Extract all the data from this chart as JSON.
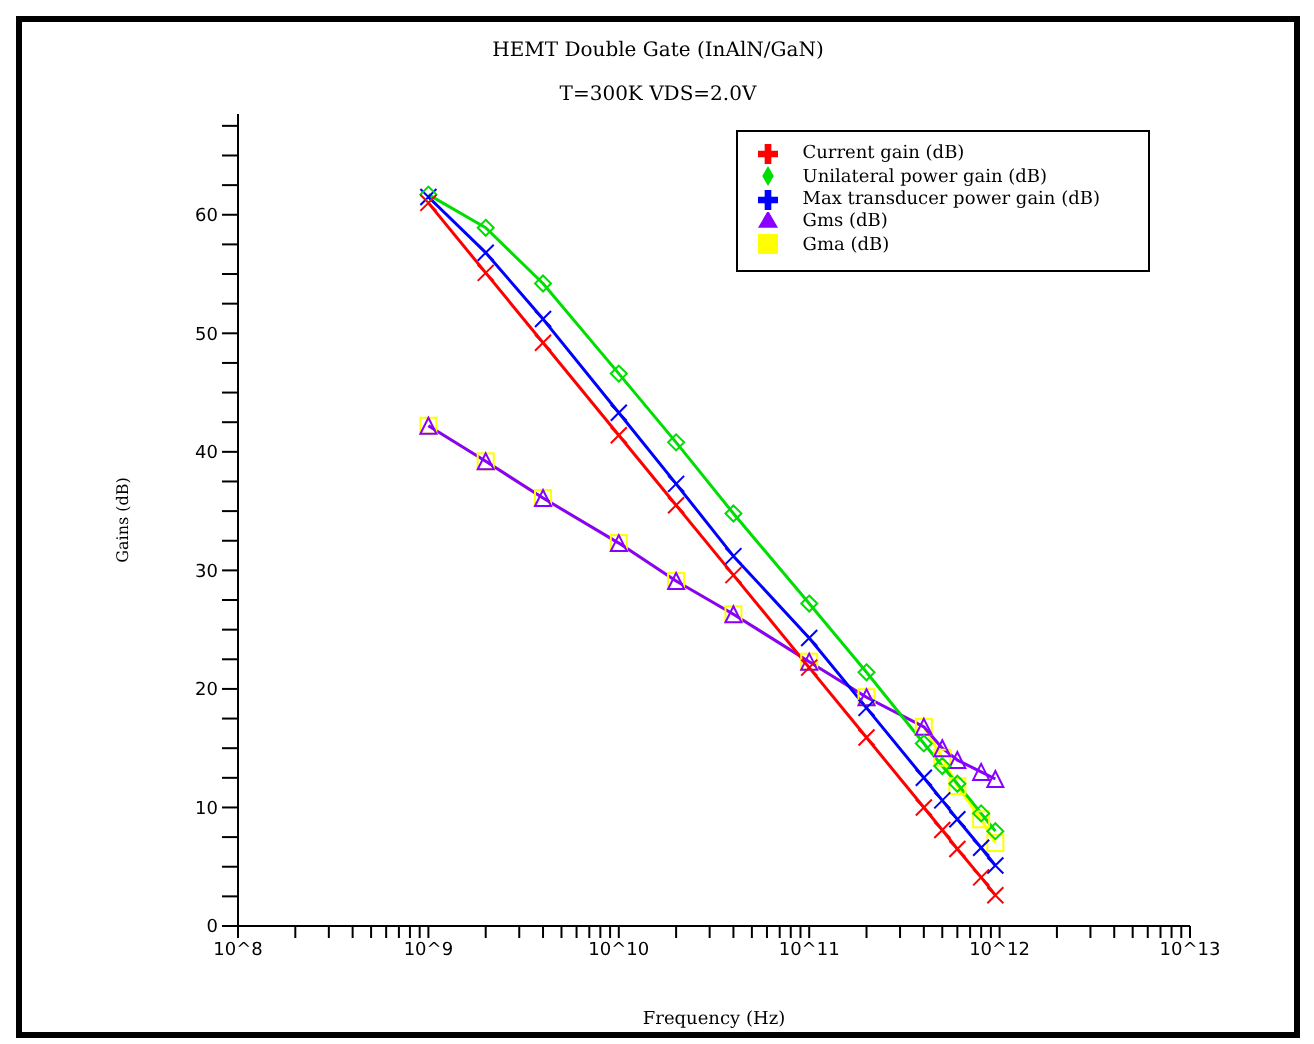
{
  "chart_data": {
    "type": "line",
    "title": "HEMT Double Gate (InAlN/GaN)",
    "subtitle": "T=300K VDS=2.0V",
    "xlabel": "Frequency (Hz)",
    "ylabel": "Gains (dB)",
    "x": [
      1000000000,
      2000000000,
      4000000000,
      10000000000,
      20000000000,
      40000000000,
      100000000000,
      200000000000,
      400000000000,
      500000000000,
      600000000000,
      800000000000,
      950000000000
    ],
    "series": [
      {
        "name": "Current gain (dB)",
        "color": "#ff0000",
        "marker": "cross",
        "values": [
          61.0,
          55.1,
          49.2,
          41.4,
          35.5,
          29.6,
          21.8,
          15.9,
          10.0,
          8.1,
          6.5,
          4.1,
          2.6
        ]
      },
      {
        "name": "Unilateral power gain (dB)",
        "color": "#00dd00",
        "marker": "diamond",
        "values": [
          61.7,
          58.9,
          54.2,
          46.6,
          40.8,
          34.8,
          27.2,
          21.4,
          15.4,
          13.5,
          12.0,
          9.5,
          8.0
        ]
      },
      {
        "name": "Max transducer power gain (dB)",
        "color": "#0000ff",
        "marker": "cross",
        "values": [
          61.5,
          56.8,
          51.2,
          43.3,
          37.3,
          31.2,
          24.3,
          18.4,
          12.5,
          10.6,
          9.0,
          6.6,
          5.1
        ]
      },
      {
        "name": "Gms (dB)",
        "color": "#8800ff",
        "marker": "triangle",
        "values": [
          42.2,
          39.2,
          36.1,
          32.3,
          29.1,
          26.3,
          22.3,
          19.3,
          16.8,
          15.0,
          14.0,
          13.0,
          12.4
        ]
      },
      {
        "name": "Gma (dB)",
        "color": "#ffff00",
        "marker": "square",
        "values": [
          42.2,
          39.2,
          36.1,
          32.3,
          29.1,
          26.3,
          22.3,
          19.3,
          16.8,
          14.2,
          11.8,
          9.0,
          7.0
        ]
      }
    ],
    "log": "x",
    "xlim": [
      100000000,
      10000000000000
    ],
    "xticks": [
      {
        "value": 100000000,
        "label": "10^8"
      },
      {
        "value": 200000000,
        "label": null
      },
      {
        "value": 300000000,
        "label": null
      },
      {
        "value": 400000000,
        "label": null
      },
      {
        "value": 500000000,
        "label": null
      },
      {
        "value": 600000000,
        "label": null
      },
      {
        "value": 700000000,
        "label": null
      },
      {
        "value": 800000000,
        "label": null
      },
      {
        "value": 900000000,
        "label": null
      },
      {
        "value": 1000000000,
        "label": "10^9"
      },
      {
        "value": 2000000000,
        "label": null
      },
      {
        "value": 3000000000,
        "label": null
      },
      {
        "value": 4000000000,
        "label": null
      },
      {
        "value": 5000000000,
        "label": null
      },
      {
        "value": 6000000000,
        "label": null
      },
      {
        "value": 7000000000,
        "label": null
      },
      {
        "value": 8000000000,
        "label": null
      },
      {
        "value": 9000000000,
        "label": null
      },
      {
        "value": 10000000000,
        "label": "10^10"
      },
      {
        "value": 20000000000,
        "label": null
      },
      {
        "value": 30000000000,
        "label": null
      },
      {
        "value": 40000000000,
        "label": null
      },
      {
        "value": 50000000000,
        "label": null
      },
      {
        "value": 60000000000,
        "label": null
      },
      {
        "value": 70000000000,
        "label": null
      },
      {
        "value": 80000000000,
        "label": null
      },
      {
        "value": 90000000000,
        "label": null
      },
      {
        "value": 100000000000,
        "label": "10^11"
      },
      {
        "value": 200000000000,
        "label": null
      },
      {
        "value": 300000000000,
        "label": null
      },
      {
        "value": 400000000000,
        "label": null
      },
      {
        "value": 500000000000,
        "label": null
      },
      {
        "value": 600000000000,
        "label": null
      },
      {
        "value": 700000000000,
        "label": null
      },
      {
        "value": 800000000000,
        "label": null
      },
      {
        "value": 900000000000,
        "label": null
      },
      {
        "value": 1000000000000,
        "label": "10^12"
      },
      {
        "value": 2000000000000,
        "label": null
      },
      {
        "value": 3000000000000,
        "label": null
      },
      {
        "value": 4000000000000,
        "label": null
      },
      {
        "value": 5000000000000,
        "label": null
      },
      {
        "value": 6000000000000,
        "label": null
      },
      {
        "value": 7000000000000,
        "label": null
      },
      {
        "value": 8000000000000,
        "label": null
      },
      {
        "value": 9000000000000,
        "label": null
      },
      {
        "value": 10000000000000,
        "label": "10^13"
      }
    ],
    "ylim": [
      0,
      68.5
    ],
    "yticks": [
      0,
      {
        "value": 2.5,
        "label": null
      },
      {
        "value": 5,
        "label": null
      },
      {
        "value": 7.5,
        "label": null
      },
      10,
      {
        "value": 12.5,
        "label": null
      },
      {
        "value": 15,
        "label": null
      },
      {
        "value": 17.5,
        "label": null
      },
      20,
      {
        "value": 22.5,
        "label": null
      },
      {
        "value": 25,
        "label": null
      },
      {
        "value": 27.5,
        "label": null
      },
      30,
      {
        "value": 32.5,
        "label": null
      },
      {
        "value": 35,
        "label": null
      },
      {
        "value": 37.5,
        "label": null
      },
      40,
      {
        "value": 42.5,
        "label": null
      },
      {
        "value": 45,
        "label": null
      },
      {
        "value": 47.5,
        "label": null
      },
      50,
      {
        "value": 52.5,
        "label": null
      },
      {
        "value": 55,
        "label": null
      },
      {
        "value": 57.5,
        "label": null
      },
      60,
      {
        "value": 62.5,
        "label": null
      },
      {
        "value": 65,
        "label": null
      },
      {
        "value": 67.5,
        "label": null
      }
    ],
    "grid": false,
    "legend": "top right"
  }
}
